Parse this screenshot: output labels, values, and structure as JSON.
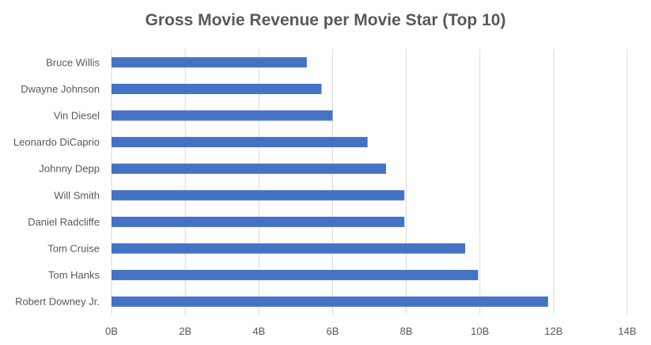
{
  "chart_data": {
    "type": "bar",
    "orientation": "horizontal",
    "title": "Gross Movie Revenue per Movie Star (Top 10)",
    "xlabel": "",
    "ylabel": "",
    "categories": [
      "Bruce Willis",
      "Dwayne Johnson",
      "Vin Diesel",
      "Leonardo DiCaprio",
      "Johnny Depp",
      "Will Smith",
      "Daniel Radcliffe",
      "Tom Cruise",
      "Tom Hanks",
      "Robert Downey Jr."
    ],
    "values": [
      5.3,
      5.7,
      6.0,
      6.95,
      7.45,
      7.95,
      7.95,
      9.6,
      9.95,
      11.85
    ],
    "units": "billions",
    "xlim": [
      0,
      14
    ],
    "xticks": [
      0,
      2,
      4,
      6,
      8,
      10,
      12,
      14
    ],
    "xtick_labels": [
      "0B",
      "2B",
      "4B",
      "6B",
      "8B",
      "10B",
      "12B",
      "14B"
    ],
    "grid": "vertical",
    "legend": "none",
    "bar_color": "#4472C4",
    "grid_color": "#D9D9D9"
  }
}
